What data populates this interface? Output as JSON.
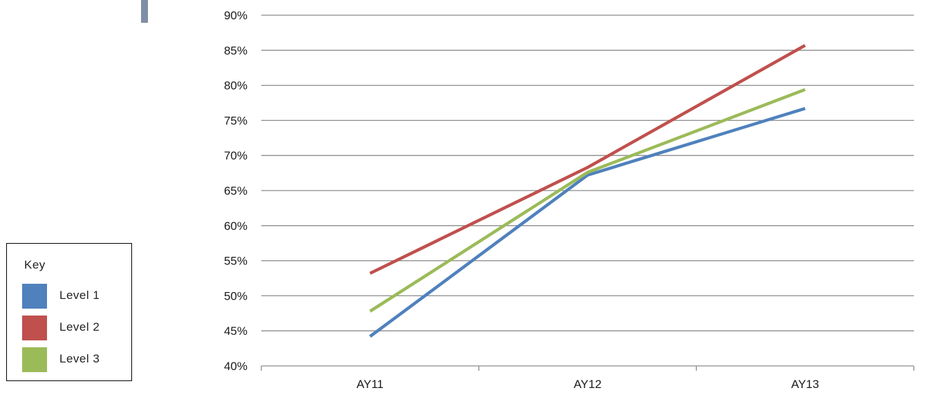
{
  "chart_data": {
    "type": "line",
    "categories": [
      "AY11",
      "AY12",
      "AY13"
    ],
    "y_ticks": [
      "40%",
      "45%",
      "50%",
      "55%",
      "60%",
      "65%",
      "70%",
      "75%",
      "80%",
      "85%",
      "90%"
    ],
    "ylim": [
      40,
      90
    ],
    "grid": true,
    "legend_placement": "left",
    "series": [
      {
        "name": "Level 1",
        "color": "#4F81BD",
        "values": [
          44.2,
          67.2,
          76.7
        ]
      },
      {
        "name": "Level 2",
        "color": "#C0504D",
        "values": [
          53.2,
          68.3,
          85.7
        ]
      },
      {
        "name": "Level 3",
        "color": "#9BBB59",
        "values": [
          47.8,
          67.6,
          79.4
        ]
      }
    ]
  },
  "legend": {
    "title": "Key",
    "items": [
      {
        "label": "Level 1",
        "color": "#4F81BD"
      },
      {
        "label": "Level 2",
        "color": "#C0504D"
      },
      {
        "label": "Level 3",
        "color": "#9BBB59"
      }
    ]
  },
  "accent_color": "#7F8FA6"
}
